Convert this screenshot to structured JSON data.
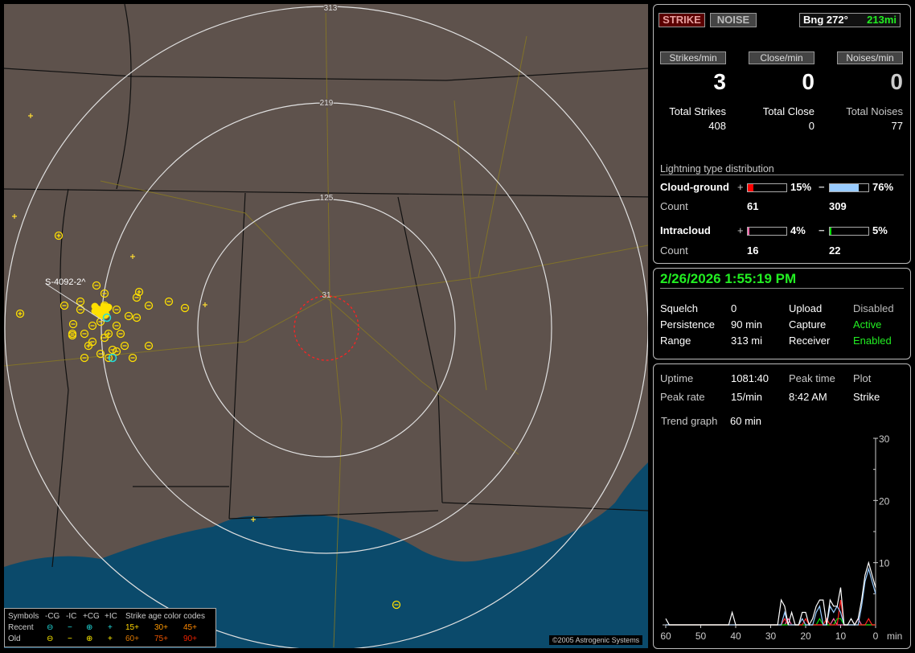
{
  "map": {
    "range_labels": [
      "31",
      "125",
      "219",
      "313"
    ],
    "storm_label": "S-4092-2^",
    "copyright": "©2005 Astrogenic Systems",
    "legend": {
      "symbols_label": "Symbols",
      "columns": [
        "-CG",
        "-IC",
        "+CG",
        "+IC"
      ],
      "rows": [
        "Recent",
        "Old"
      ],
      "age_title": "Strike age color codes",
      "age_codes": [
        [
          "15+",
          "30+",
          "45+"
        ],
        [
          "60+",
          "75+",
          "90+"
        ]
      ],
      "age_colors": [
        [
          "#ffd400",
          "#ff9900",
          "#ff8800"
        ],
        [
          "#dd7700",
          "#ee5500",
          "#ee2200"
        ]
      ]
    },
    "colors": {
      "land": "#5e524c",
      "water": "#0b4a6b",
      "recent": "#22dddd",
      "old": "#ffee00"
    }
  },
  "status": {
    "strike_button": "STRIKE",
    "noise_button": "NOISE",
    "bearing": "Bng 272°",
    "distance": "213mi",
    "rates": [
      {
        "label": "Strikes/min",
        "value": "3",
        "total_label": "Total Strikes",
        "total": "408"
      },
      {
        "label": "Close/min",
        "value": "0",
        "total_label": "Total Close",
        "total": "0"
      },
      {
        "label": "Noises/min",
        "value": "0",
        "total_label": "Total Noises",
        "total": "77"
      }
    ],
    "distribution": {
      "title": "Lightning type distribution",
      "cloud_ground": {
        "label": "Cloud-ground",
        "plus_pct": 15,
        "plus_text": "15%",
        "minus_pct": 76,
        "minus_text": "76%",
        "count_label": "Count",
        "plus_count": "61",
        "minus_count": "309",
        "plus_color": "#ff0000",
        "minus_color": "#99ccff"
      },
      "intracloud": {
        "label": "Intracloud",
        "plus_pct": 4,
        "plus_text": "4%",
        "minus_pct": 5,
        "minus_text": "5%",
        "count_label": "Count",
        "plus_count": "16",
        "minus_count": "22",
        "plus_color": "#ff66aa",
        "minus_color": "#00dd00"
      }
    }
  },
  "info": {
    "datetime": "2/26/2026 1:55:19 PM",
    "rows": [
      [
        "Squelch",
        "0",
        "Upload",
        "Disabled"
      ],
      [
        "Persistence",
        "90 min",
        "Capture",
        "Active"
      ],
      [
        "Range",
        "313 mi",
        "Receiver",
        "Enabled"
      ]
    ]
  },
  "stats": {
    "uptime_label": "Uptime",
    "uptime": "1081:40",
    "peak_time_label": "Peak time",
    "plot_label": "Plot",
    "peak_rate_label": "Peak rate",
    "peak_rate": "15/min",
    "peak_time": "8:42 AM",
    "plot": "Strike",
    "trend_label": "Trend graph",
    "trend": "60 min"
  },
  "chart_data": {
    "type": "line",
    "xlabel": "min",
    "x_ticks": [
      "60",
      "50",
      "40",
      "30",
      "20",
      "10",
      "0"
    ],
    "y_ticks": [
      "10",
      "20",
      "30"
    ],
    "xlim": [
      60,
      0
    ],
    "ylim": [
      0,
      30
    ],
    "x": [
      60,
      59,
      58,
      57,
      56,
      55,
      54,
      53,
      52,
      51,
      50,
      49,
      48,
      47,
      46,
      45,
      44,
      43,
      42,
      41,
      40,
      39,
      38,
      37,
      36,
      35,
      34,
      33,
      32,
      31,
      30,
      29,
      28,
      27,
      26,
      25,
      24,
      23,
      22,
      21,
      20,
      19,
      18,
      17,
      16,
      15,
      14,
      13,
      12,
      11,
      10,
      9,
      8,
      7,
      6,
      5,
      4,
      3,
      2,
      1,
      0
    ],
    "series": [
      {
        "color": "#ffffff",
        "values": [
          1,
          0,
          0,
          0,
          0,
          0,
          0,
          0,
          0,
          0,
          0,
          0,
          0,
          0,
          0,
          0,
          0,
          0,
          0,
          2,
          0,
          0,
          0,
          0,
          0,
          0,
          0,
          0,
          0,
          0,
          0,
          0,
          0,
          4,
          3,
          0,
          2,
          0,
          0,
          2,
          2,
          0,
          1,
          3,
          4,
          4,
          0,
          4,
          3,
          3,
          6,
          0,
          0,
          1,
          0,
          1,
          4,
          8,
          10,
          8,
          6
        ]
      },
      {
        "color": "#99ccff",
        "values": [
          0,
          0,
          0,
          0,
          0,
          0,
          0,
          0,
          0,
          0,
          0,
          0,
          0,
          0,
          0,
          0,
          0,
          0,
          0,
          0,
          0,
          0,
          0,
          0,
          0,
          0,
          0,
          0,
          0,
          0,
          0,
          0,
          0,
          0,
          2,
          0,
          0,
          0,
          0,
          1,
          0,
          0,
          0,
          2,
          3,
          0,
          0,
          3,
          2,
          3,
          2,
          0,
          0,
          0,
          0,
          0,
          3,
          7,
          9,
          7,
          5
        ]
      },
      {
        "color": "#ff2222",
        "values": [
          0,
          0,
          0,
          0,
          0,
          0,
          0,
          0,
          0,
          0,
          0,
          0,
          0,
          0,
          0,
          0,
          0,
          0,
          0,
          0,
          0,
          0,
          0,
          0,
          0,
          0,
          0,
          0,
          0,
          0,
          0,
          0,
          0,
          0,
          1,
          0,
          0,
          0,
          0,
          0,
          1,
          0,
          0,
          0,
          0,
          0,
          1,
          0,
          0,
          0,
          4,
          0,
          0,
          0,
          0,
          0,
          0,
          0,
          1,
          0,
          0
        ]
      },
      {
        "color": "#00dd00",
        "values": [
          0,
          0,
          0,
          0,
          0,
          0,
          0,
          0,
          0,
          0,
          0,
          0,
          0,
          0,
          0,
          0,
          0,
          0,
          0,
          0,
          0,
          0,
          0,
          0,
          0,
          0,
          0,
          0,
          0,
          0,
          0,
          0,
          0,
          0,
          0,
          0,
          0,
          0,
          0,
          0,
          0,
          0,
          0,
          0,
          1,
          0,
          0,
          0,
          0,
          1,
          1,
          0,
          0,
          0,
          0,
          0,
          0,
          0,
          0,
          0,
          0
        ]
      },
      {
        "color": "#ff66aa",
        "values": [
          0,
          0,
          0,
          0,
          0,
          0,
          0,
          0,
          0,
          0,
          0,
          0,
          0,
          0,
          0,
          0,
          0,
          0,
          0,
          0,
          0,
          0,
          0,
          0,
          0,
          0,
          0,
          0,
          0,
          0,
          0,
          0,
          0,
          0,
          0,
          1,
          0,
          0,
          0,
          0,
          0,
          0,
          0,
          0,
          0,
          0,
          0,
          0,
          1,
          0,
          0,
          0,
          0,
          0,
          0,
          1,
          0,
          0,
          0,
          0,
          0
        ]
      }
    ]
  }
}
